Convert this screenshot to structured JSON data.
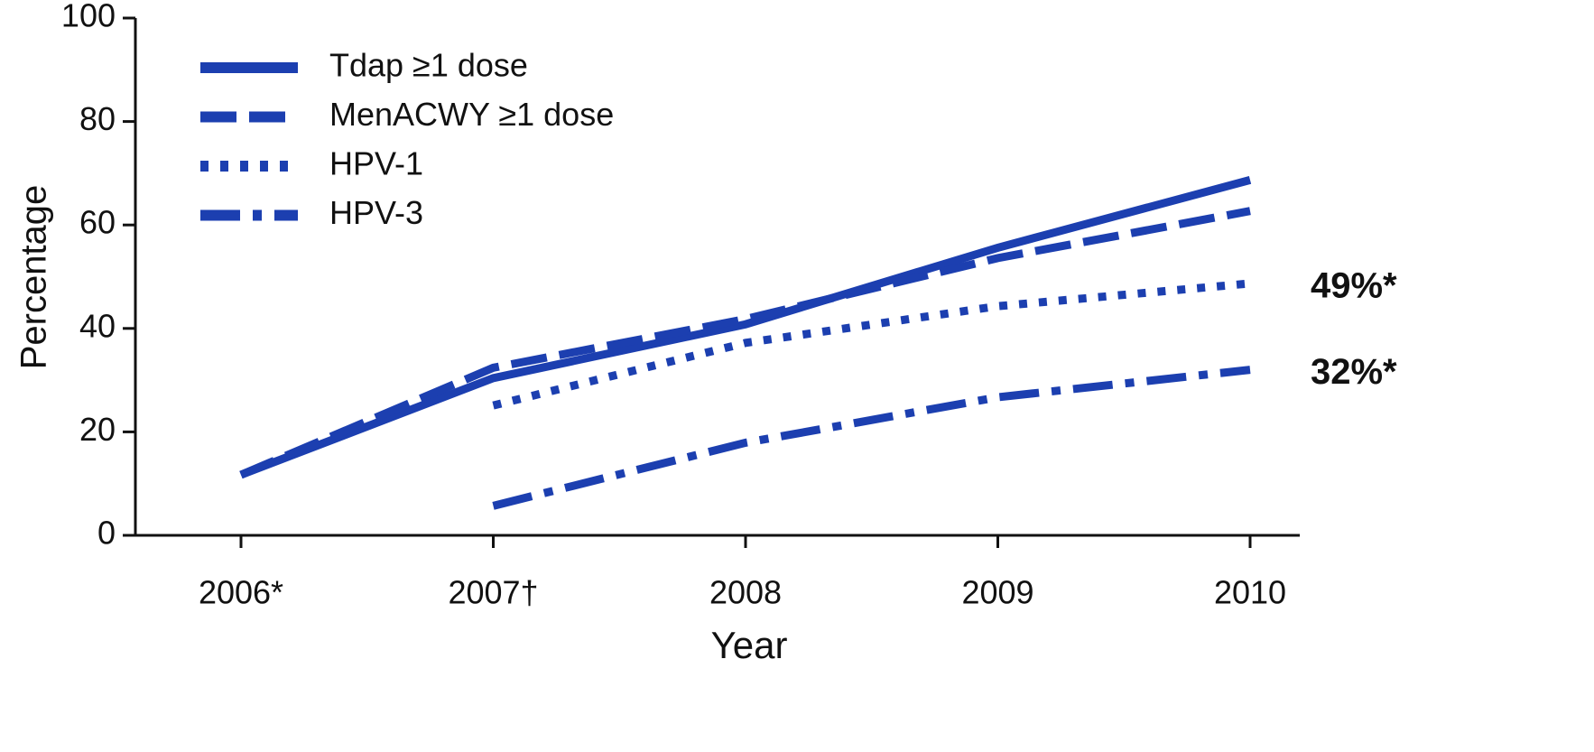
{
  "chart_data": {
    "type": "line",
    "xlabel": "Year",
    "ylabel": "Percentage",
    "categories": [
      "2006*",
      "2007†",
      "2008",
      "2009",
      "2010"
    ],
    "ylim": [
      0,
      100
    ],
    "yticks": [
      0,
      20,
      40,
      60,
      80,
      100
    ],
    "legend": "upper left",
    "series": [
      {
        "name": "Tdap ≥1 dose",
        "color": "#1c3fb0",
        "linestyle": "solid",
        "values": [
          11.7,
          30.4,
          40.8,
          55.6,
          68.7
        ]
      },
      {
        "name": "MenACWY ≥1 dose",
        "color": "#1c3fb0",
        "linestyle": "dashed",
        "values": [
          11.7,
          32.4,
          41.8,
          53.6,
          62.7
        ]
      },
      {
        "name": "HPV-1",
        "color": "#1c3fb0",
        "linestyle": "dotted",
        "values": [
          null,
          25.1,
          37.2,
          44.3,
          48.7
        ],
        "value_labels": [
          null,
          null,
          null,
          null,
          "49%*"
        ]
      },
      {
        "name": "HPV-3",
        "color": "#1c3fb0",
        "linestyle": "dashdot",
        "values": [
          null,
          5.7,
          17.9,
          26.7,
          32.0
        ],
        "value_labels": [
          null,
          null,
          null,
          null,
          "32%*"
        ]
      }
    ]
  }
}
